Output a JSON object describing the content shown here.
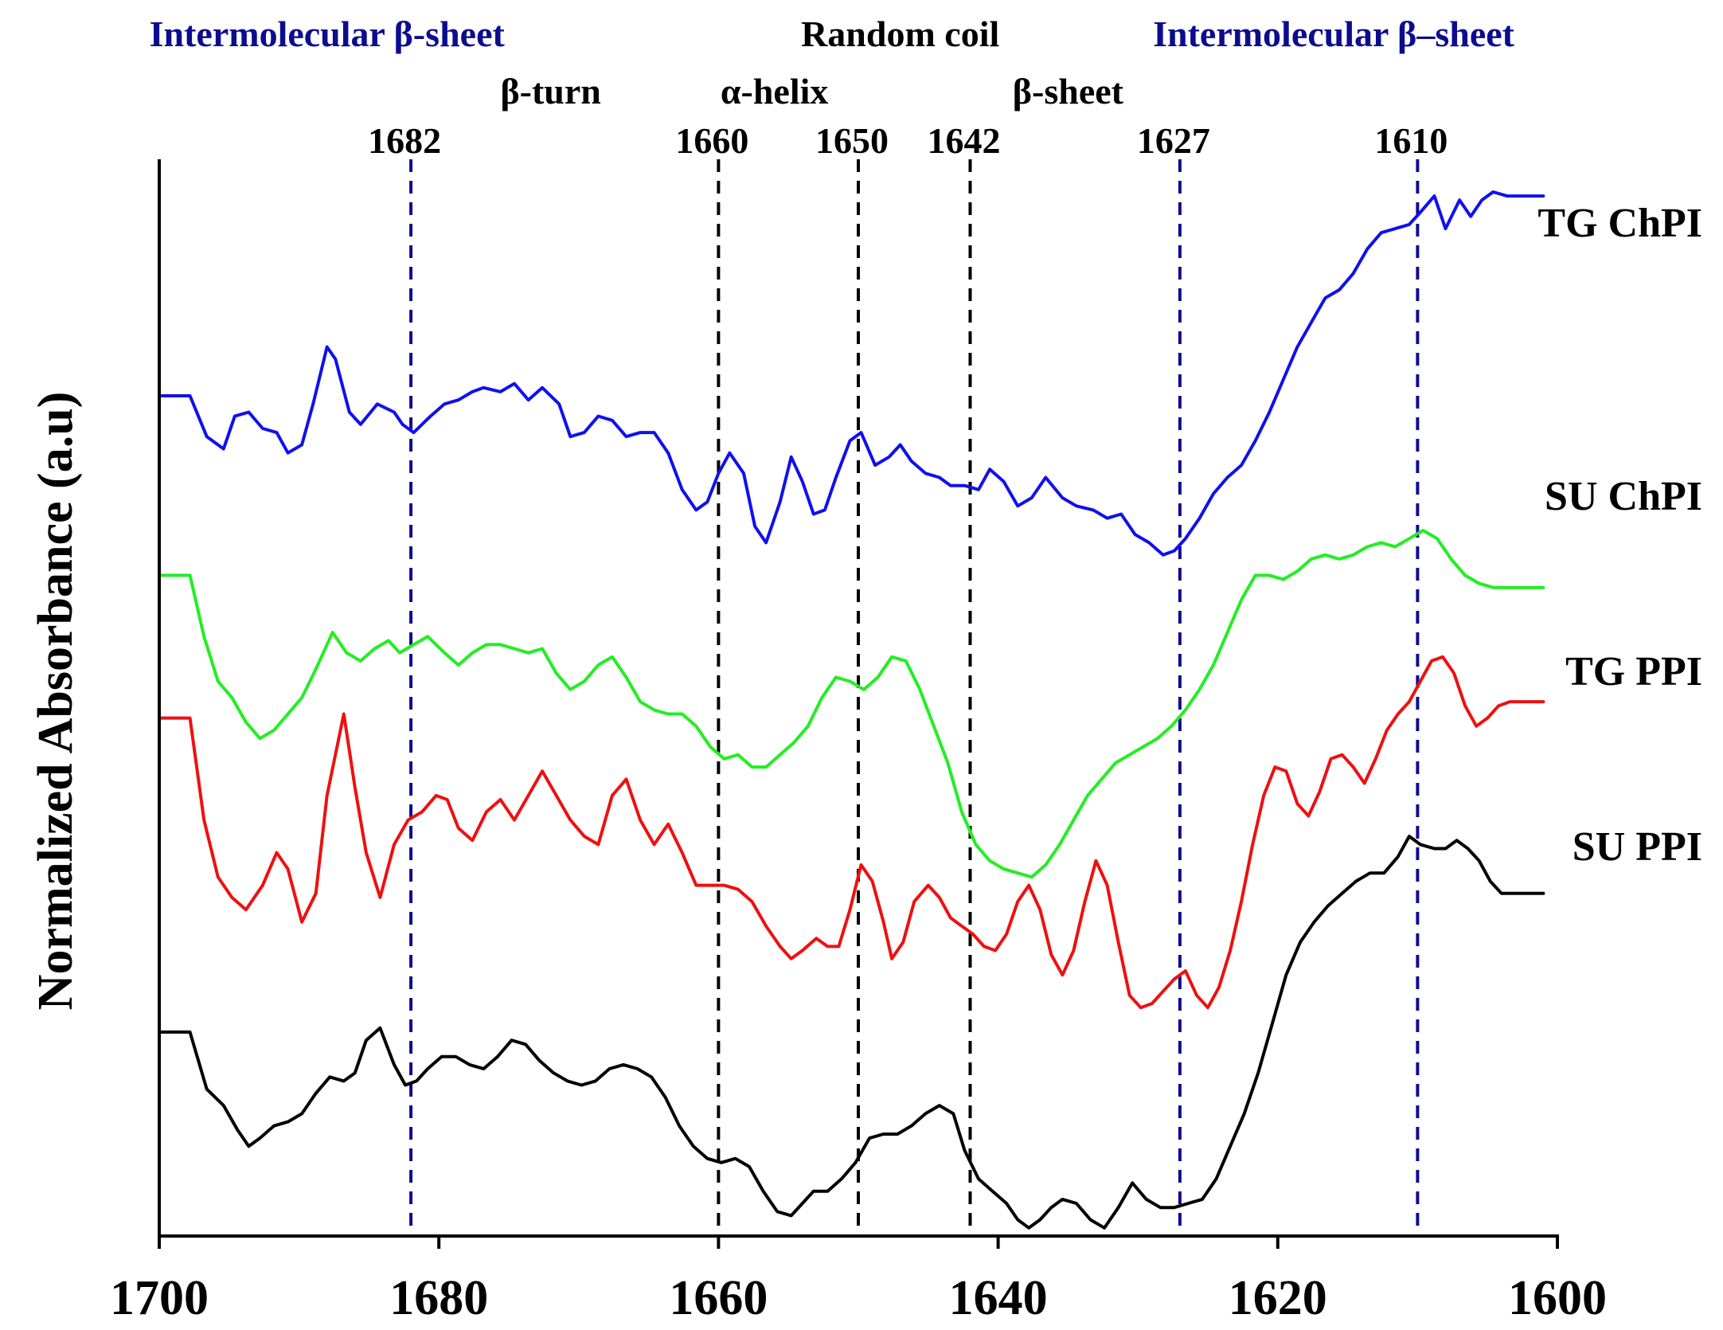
{
  "chart_data": {
    "type": "line",
    "title": "",
    "xlabel": "",
    "ylabel": "Normalized Absorbance (a.u)",
    "xlim": [
      1700,
      1600
    ],
    "x_reversed": true,
    "x_ticks": [
      1700,
      1680,
      1660,
      1640,
      1620,
      1600
    ],
    "x_tick_labels": [
      "1700",
      "1680",
      "1660",
      "1640",
      "1620",
      "1600"
    ],
    "grid": false,
    "legend_position": "right, next to each line end",
    "reference_lines": [
      {
        "x": 1682,
        "label": "1682",
        "color": "#0c0c8f",
        "style": "dashed"
      },
      {
        "x": 1660,
        "label": "1660",
        "color": "#000000",
        "style": "dashed"
      },
      {
        "x": 1650,
        "label": "1650",
        "color": "#000000",
        "style": "dashed"
      },
      {
        "x": 1642,
        "label": "1642",
        "color": "#000000",
        "style": "dashed"
      },
      {
        "x": 1627,
        "label": "1627",
        "color": "#0c0c8f",
        "style": "dashed"
      },
      {
        "x": 1610,
        "label": "1610",
        "color": "#0c0c8f",
        "style": "dashed"
      }
    ],
    "region_labels": [
      {
        "text": "Intermolecular β-sheet",
        "x": 1688,
        "color": "#0c0c8f"
      },
      {
        "text": "β-turn",
        "x": 1672,
        "color": "#000000"
      },
      {
        "text": "α-helix",
        "x": 1656,
        "color": "#000000"
      },
      {
        "text": "Random coil",
        "x": 1647,
        "color": "#000000"
      },
      {
        "text": "β-sheet",
        "x": 1635,
        "color": "#000000"
      },
      {
        "text": "Intermolecular β–sheet",
        "x": 1616,
        "color": "#0c0c8f"
      }
    ],
    "series": [
      {
        "name": "TG ChPI",
        "color": "#1010ee",
        "x": [
          1700,
          1697.8,
          1696.6,
          1695.4,
          1694.6,
          1693.6,
          1692.6,
          1691.6,
          1690.8,
          1689.8,
          1689,
          1688,
          1687.4,
          1686.4,
          1685.6,
          1684.4,
          1683.2,
          1682.6,
          1681.8,
          1680.6,
          1679.6,
          1678.6,
          1677.6,
          1676.8,
          1675.6,
          1674.6,
          1673.6,
          1672.6,
          1671.4,
          1670.6,
          1669.6,
          1668.6,
          1667.6,
          1666.6,
          1665.6,
          1664.6,
          1663.6,
          1662.6,
          1661.6,
          1660.8,
          1660,
          1659.2,
          1658.2,
          1657.4,
          1656.6,
          1655.6,
          1654.8,
          1654,
          1653.2,
          1652.4,
          1651.6,
          1650.6,
          1649.8,
          1648.8,
          1647.8,
          1647,
          1646.2,
          1645.2,
          1644.2,
          1643.4,
          1642.4,
          1641.4,
          1640.6,
          1639.6,
          1638.6,
          1637.6,
          1636.6,
          1635.4,
          1634.4,
          1633.2,
          1632.2,
          1631.2,
          1630.2,
          1629.2,
          1628.2,
          1627.4,
          1626.6,
          1625.6,
          1624.6,
          1623.6,
          1622.6,
          1621.6,
          1620.6,
          1619.6,
          1618.6,
          1617.6,
          1616.6,
          1615.6,
          1614.6,
          1613.6,
          1612.6,
          1611.6,
          1610.6,
          1609.8,
          1608.8,
          1608,
          1607,
          1606.2,
          1605.4,
          1604.6,
          1603.6,
          1602.6,
          1601
        ],
        "y": [
          2.84,
          2.84,
          2.74,
          2.71,
          2.79,
          2.8,
          2.76,
          2.75,
          2.7,
          2.72,
          2.82,
          2.96,
          2.93,
          2.8,
          2.77,
          2.82,
          2.8,
          2.77,
          2.75,
          2.79,
          2.82,
          2.83,
          2.85,
          2.86,
          2.85,
          2.87,
          2.83,
          2.86,
          2.82,
          2.74,
          2.75,
          2.79,
          2.78,
          2.74,
          2.75,
          2.75,
          2.7,
          2.61,
          2.56,
          2.58,
          2.65,
          2.7,
          2.65,
          2.52,
          2.48,
          2.58,
          2.69,
          2.63,
          2.55,
          2.56,
          2.64,
          2.73,
          2.75,
          2.67,
          2.69,
          2.72,
          2.68,
          2.65,
          2.64,
          2.62,
          2.62,
          2.61,
          2.66,
          2.63,
          2.57,
          2.59,
          2.64,
          2.59,
          2.57,
          2.56,
          2.54,
          2.55,
          2.5,
          2.48,
          2.45,
          2.46,
          2.49,
          2.54,
          2.6,
          2.64,
          2.67,
          2.73,
          2.8,
          2.88,
          2.96,
          3.02,
          3.08,
          3.1,
          3.14,
          3.2,
          3.24,
          3.25,
          3.26,
          3.29,
          3.33,
          3.25,
          3.32,
          3.28,
          3.32,
          3.34,
          3.33,
          3.33,
          3.33
        ]
      },
      {
        "name": "SU ChPI",
        "color": "#22ee22",
        "x": [
          1700,
          1697.8,
          1696.8,
          1695.8,
          1694.8,
          1693.8,
          1692.8,
          1691.8,
          1690.8,
          1689.8,
          1688.8,
          1687.6,
          1686.6,
          1685.6,
          1684.6,
          1683.6,
          1682.8,
          1681.8,
          1680.8,
          1679.6,
          1678.6,
          1677.6,
          1676.6,
          1675.6,
          1674.6,
          1673.6,
          1672.6,
          1671.6,
          1670.6,
          1669.6,
          1668.6,
          1667.6,
          1666.6,
          1665.6,
          1664.6,
          1663.6,
          1662.6,
          1661.6,
          1660.6,
          1659.6,
          1658.6,
          1657.6,
          1656.6,
          1655.6,
          1654.6,
          1653.6,
          1652.6,
          1651.6,
          1650.6,
          1649.6,
          1648.6,
          1647.6,
          1646.6,
          1645.6,
          1644.6,
          1643.6,
          1642.6,
          1641.6,
          1640.6,
          1639.6,
          1638.6,
          1637.6,
          1636.6,
          1635.6,
          1634.6,
          1633.6,
          1632.6,
          1631.6,
          1630.6,
          1629.6,
          1628.6,
          1627.6,
          1626.6,
          1625.6,
          1624.6,
          1623.6,
          1622.6,
          1621.6,
          1620.6,
          1619.6,
          1618.6,
          1617.6,
          1616.6,
          1615.6,
          1614.6,
          1613.6,
          1612.6,
          1611.6,
          1610.6,
          1609.6,
          1608.6,
          1607.6,
          1606.6,
          1605.6,
          1604.6,
          1603.6,
          1602.6,
          1601
        ],
        "y": [
          2.4,
          2.4,
          2.25,
          2.14,
          2.1,
          2.04,
          2.0,
          2.02,
          2.06,
          2.1,
          2.17,
          2.26,
          2.21,
          2.19,
          2.22,
          2.24,
          2.21,
          2.23,
          2.25,
          2.21,
          2.18,
          2.21,
          2.23,
          2.23,
          2.22,
          2.21,
          2.22,
          2.16,
          2.12,
          2.14,
          2.18,
          2.2,
          2.15,
          2.09,
          2.07,
          2.06,
          2.06,
          2.03,
          1.98,
          1.95,
          1.96,
          1.93,
          1.93,
          1.96,
          1.99,
          2.03,
          2.1,
          2.15,
          2.14,
          2.12,
          2.15,
          2.2,
          2.19,
          2.12,
          2.03,
          1.94,
          1.82,
          1.74,
          1.7,
          1.68,
          1.67,
          1.66,
          1.69,
          1.74,
          1.8,
          1.86,
          1.9,
          1.94,
          1.96,
          1.98,
          2.0,
          2.03,
          2.07,
          2.12,
          2.18,
          2.26,
          2.34,
          2.4,
          2.4,
          2.39,
          2.41,
          2.44,
          2.45,
          2.44,
          2.45,
          2.47,
          2.48,
          2.47,
          2.49,
          2.51,
          2.49,
          2.44,
          2.4,
          2.38,
          2.37,
          2.37,
          2.37,
          2.37
        ]
      },
      {
        "name": "TG PPI",
        "color": "#ee1010",
        "x": [
          1700,
          1697.8,
          1696.8,
          1695.8,
          1694.8,
          1693.8,
          1692.6,
          1691.6,
          1690.8,
          1689.8,
          1688.8,
          1688,
          1686.8,
          1686,
          1685.2,
          1684.2,
          1683.2,
          1682.2,
          1681.2,
          1680.2,
          1679.4,
          1678.6,
          1677.6,
          1676.6,
          1675.6,
          1674.6,
          1673.6,
          1672.6,
          1671.6,
          1670.6,
          1669.6,
          1668.6,
          1667.6,
          1666.6,
          1665.6,
          1664.6,
          1663.6,
          1662.6,
          1661.6,
          1660.6,
          1659.6,
          1658.6,
          1657.6,
          1656.6,
          1655.6,
          1654.8,
          1654,
          1653,
          1652.2,
          1651.4,
          1650.6,
          1649.8,
          1649,
          1648.2,
          1647.6,
          1646.8,
          1646,
          1645,
          1644.2,
          1643.4,
          1642.6,
          1641.8,
          1641,
          1640.2,
          1639.4,
          1638.6,
          1637.8,
          1637,
          1636.2,
          1635.4,
          1634.6,
          1633.8,
          1633,
          1632.2,
          1631.4,
          1630.6,
          1629.8,
          1629,
          1628.2,
          1627.4,
          1626.6,
          1625.8,
          1625,
          1624.2,
          1623.4,
          1622.6,
          1621.8,
          1621,
          1620.2,
          1619.4,
          1618.6,
          1617.8,
          1617,
          1616.2,
          1615.4,
          1614.6,
          1613.8,
          1613,
          1612.2,
          1611.4,
          1610.6,
          1609.8,
          1609,
          1608.2,
          1607.4,
          1606.6,
          1605.8,
          1605,
          1604.2,
          1603.4,
          1602.6,
          1601
        ],
        "y": [
          2.05,
          2.05,
          1.8,
          1.66,
          1.61,
          1.58,
          1.64,
          1.72,
          1.68,
          1.55,
          1.62,
          1.86,
          2.06,
          1.88,
          1.72,
          1.61,
          1.74,
          1.8,
          1.82,
          1.86,
          1.85,
          1.78,
          1.75,
          1.82,
          1.85,
          1.8,
          1.86,
          1.92,
          1.86,
          1.8,
          1.76,
          1.74,
          1.86,
          1.9,
          1.8,
          1.74,
          1.79,
          1.72,
          1.64,
          1.64,
          1.64,
          1.63,
          1.6,
          1.54,
          1.49,
          1.46,
          1.48,
          1.51,
          1.49,
          1.49,
          1.58,
          1.69,
          1.65,
          1.55,
          1.46,
          1.5,
          1.6,
          1.64,
          1.61,
          1.56,
          1.54,
          1.52,
          1.49,
          1.48,
          1.52,
          1.6,
          1.64,
          1.58,
          1.47,
          1.42,
          1.48,
          1.6,
          1.7,
          1.64,
          1.5,
          1.37,
          1.34,
          1.35,
          1.38,
          1.41,
          1.43,
          1.37,
          1.34,
          1.39,
          1.48,
          1.6,
          1.74,
          1.86,
          1.93,
          1.92,
          1.84,
          1.81,
          1.87,
          1.95,
          1.96,
          1.93,
          1.89,
          1.95,
          2.02,
          2.06,
          2.09,
          2.14,
          2.19,
          2.2,
          2.16,
          2.08,
          2.03,
          2.05,
          2.08,
          2.09,
          2.09,
          2.09
        ]
      },
      {
        "name": "SU PPI",
        "color": "#000000",
        "x": [
          1700,
          1697.8,
          1696.6,
          1695.4,
          1694.4,
          1693.6,
          1692.8,
          1691.8,
          1690.8,
          1689.8,
          1688.8,
          1687.8,
          1686.8,
          1686,
          1685.2,
          1684.2,
          1683.2,
          1682.4,
          1681.6,
          1680.8,
          1679.8,
          1678.8,
          1677.8,
          1676.8,
          1675.8,
          1674.8,
          1673.8,
          1672.8,
          1671.8,
          1670.8,
          1669.8,
          1668.8,
          1667.8,
          1666.8,
          1665.8,
          1664.8,
          1663.8,
          1662.8,
          1661.8,
          1660.8,
          1659.8,
          1658.8,
          1657.8,
          1656.8,
          1655.8,
          1654.8,
          1654,
          1653.2,
          1652.2,
          1651.2,
          1650.2,
          1649.2,
          1648.2,
          1647.2,
          1646.2,
          1645.2,
          1644.2,
          1643.2,
          1642.4,
          1641.4,
          1640.4,
          1639.4,
          1638.6,
          1637.8,
          1637,
          1636.2,
          1635.4,
          1634.4,
          1633.4,
          1632.4,
          1631.4,
          1630.4,
          1629.4,
          1628.4,
          1627.4,
          1626.4,
          1625.4,
          1624.4,
          1623.4,
          1622.4,
          1621.4,
          1620.4,
          1619.4,
          1618.4,
          1617.4,
          1616.4,
          1615.4,
          1614.4,
          1613.4,
          1612.4,
          1611.4,
          1610.6,
          1609.8,
          1608.8,
          1608,
          1607.2,
          1606.4,
          1605.6,
          1604.8,
          1604,
          1603.2,
          1602.4,
          1601
        ],
        "y": [
          1.28,
          1.28,
          1.14,
          1.1,
          1.04,
          1.0,
          1.02,
          1.05,
          1.06,
          1.08,
          1.13,
          1.17,
          1.16,
          1.18,
          1.26,
          1.29,
          1.2,
          1.15,
          1.16,
          1.19,
          1.22,
          1.22,
          1.2,
          1.19,
          1.22,
          1.26,
          1.25,
          1.21,
          1.18,
          1.16,
          1.15,
          1.16,
          1.19,
          1.2,
          1.19,
          1.17,
          1.12,
          1.05,
          1.0,
          0.97,
          0.96,
          0.97,
          0.95,
          0.89,
          0.84,
          0.83,
          0.86,
          0.89,
          0.89,
          0.92,
          0.96,
          1.02,
          1.03,
          1.03,
          1.05,
          1.08,
          1.1,
          1.08,
          0.99,
          0.92,
          0.89,
          0.86,
          0.82,
          0.8,
          0.82,
          0.85,
          0.87,
          0.86,
          0.82,
          0.8,
          0.85,
          0.91,
          0.87,
          0.85,
          0.85,
          0.86,
          0.87,
          0.92,
          1.0,
          1.08,
          1.18,
          1.3,
          1.42,
          1.5,
          1.55,
          1.59,
          1.62,
          1.65,
          1.67,
          1.67,
          1.71,
          1.76,
          1.74,
          1.73,
          1.73,
          1.75,
          1.73,
          1.7,
          1.65,
          1.62,
          1.62,
          1.62,
          1.62
        ]
      }
    ]
  }
}
